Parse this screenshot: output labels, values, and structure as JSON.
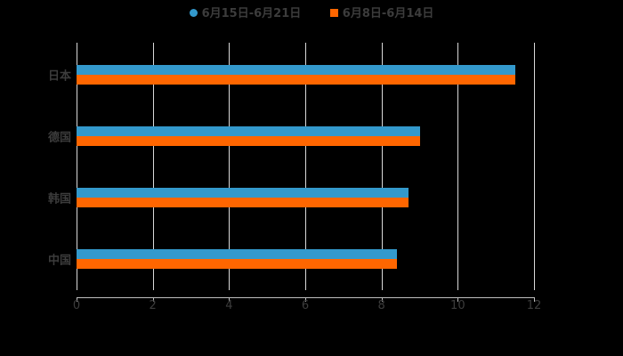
{
  "chart_data": {
    "type": "bar",
    "orientation": "horizontal",
    "title": "",
    "categories": [
      "日本",
      "德国",
      "韩国",
      "中国"
    ],
    "series": [
      {
        "name": "6月15日-6月21日",
        "color": "#3399cc",
        "values": [
          11.5,
          9.0,
          8.7,
          8.4
        ]
      },
      {
        "name": "6月8日-6月14日",
        "color": "#ff6600",
        "values": [
          11.5,
          9.0,
          8.7,
          8.4
        ]
      }
    ],
    "xlabel": "",
    "ylabel": "",
    "xlim": [
      0,
      12
    ],
    "xticks": [
      "0",
      "2",
      "4",
      "6",
      "8",
      "10",
      "12"
    ],
    "grid": true,
    "legend_position": "top"
  },
  "legend": {
    "items": [
      {
        "label": "6月15日-6月21日",
        "color": "#3399cc",
        "shape": "circle"
      },
      {
        "label": "6月8日-6月14日",
        "color": "#ff6600",
        "shape": "square"
      }
    ]
  }
}
